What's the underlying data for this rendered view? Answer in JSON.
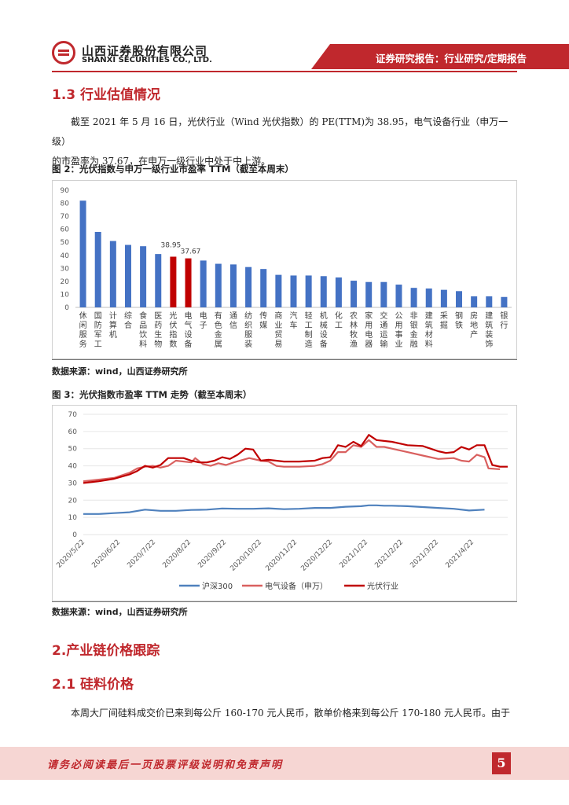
{
  "header": {
    "company_cn": "山西证券股份有限公司",
    "company_en": "SHANXI SECURITIES CO., LTD.",
    "report_type": "证券研究报告：行业研究/定期报告",
    "brand_color": "#c0282d"
  },
  "section_1_3": {
    "title": "1.3 行业估值情况",
    "para_line1": "截至 2021 年 5 月 16 日，光伏行业（Wind 光伏指数）的 PE(TTM)为 38.95，电气设备行业（申万一级）",
    "para_line2": "的市盈率为 37.67，在申万一级行业中处于中上游。"
  },
  "figure2": {
    "title": "图 2：光伏指数与申万一级行业市盈率 TTM（截至本周末）",
    "source": "数据来源：wind，山西证券研究所"
  },
  "figure3": {
    "title": "图 3：光伏指数市盈率 TTM 走势（截至本周末）",
    "source": "数据来源：wind，山西证券研究所"
  },
  "section_2": {
    "title": "2.产业链价格跟踪"
  },
  "section_2_1": {
    "title": "2.1 硅料价格",
    "para": "本周大厂间硅料成交价已来到每公斤 160-170 元人民币，散单价格来到每公斤 170-180 元人民币。由于"
  },
  "footer": {
    "disclaimer": "请务必阅读最后一页股票评级说明和免责声明",
    "page": "5"
  },
  "chart_data": [
    {
      "type": "bar",
      "categories": [
        "休闲服务",
        "国防军工",
        "计算机",
        "综合",
        "食品饮料",
        "医药生物",
        "光伏指数",
        "电气设备",
        "电子",
        "有色金属",
        "通信",
        "纺织服装",
        "传媒",
        "商业贸易",
        "汽车",
        "轻工制造",
        "机械设备",
        "化工",
        "农林牧渔",
        "家用电器",
        "交通运输",
        "公用事业",
        "非银金融",
        "建筑材料",
        "采掘",
        "钢铁",
        "房地产",
        "建筑装饰",
        "银行"
      ],
      "values": [
        82,
        58,
        51,
        48,
        47,
        41,
        38.95,
        37.67,
        36,
        33.5,
        33,
        31,
        29.5,
        25,
        24.5,
        24.5,
        24,
        23,
        20.5,
        19.5,
        19.5,
        17.5,
        15,
        14.5,
        13.5,
        12.5,
        8.5,
        8.5,
        8
      ],
      "data_labels": {
        "光伏指数": "38.95",
        "电气设备": "37.67"
      },
      "ylim": [
        0,
        90
      ],
      "yticks": [
        "0",
        "10",
        "20",
        "30",
        "40",
        "50",
        "60",
        "70",
        "80",
        "90"
      ],
      "colors": {
        "default": "#4472c4",
        "highlight": "#c00000"
      },
      "highlight": [
        "光伏指数",
        "电气设备"
      ]
    },
    {
      "type": "line",
      "x_ticks": [
        "2020/5/22",
        "2020/6/22",
        "2020/7/22",
        "2020/8/22",
        "2020/9/22",
        "2020/10/22",
        "2020/11/22",
        "2020/12/22",
        "2021/1/22",
        "2021/2/22",
        "2021/3/22",
        "2021/4/22"
      ],
      "x_start": "2020/5/22",
      "x_end": "2021/5/16",
      "ylim": [
        0,
        70
      ],
      "yticks": [
        "0",
        "10",
        "20",
        "30",
        "40",
        "50",
        "60",
        "70"
      ],
      "legend_position": "bottom",
      "series": [
        {
          "name": "沪深300",
          "color": "#4f81bd",
          "values": [
            [
              0,
              12
            ],
            [
              4,
              12
            ],
            [
              8,
              12.5
            ],
            [
              12,
              13
            ],
            [
              16,
              14.5
            ],
            [
              20,
              13.8
            ],
            [
              24,
              13.8
            ],
            [
              28,
              14.3
            ],
            [
              32,
              14.5
            ],
            [
              36,
              15.2
            ],
            [
              40,
              15
            ],
            [
              44,
              15
            ],
            [
              48,
              15.3
            ],
            [
              52,
              14.8
            ],
            [
              56,
              15
            ],
            [
              60,
              15.5
            ],
            [
              64,
              15.5
            ],
            [
              68,
              16.2
            ],
            [
              72,
              16.5
            ],
            [
              74,
              17
            ],
            [
              76,
              17
            ],
            [
              78,
              16.8
            ],
            [
              80,
              16.8
            ],
            [
              84,
              16.5
            ],
            [
              88,
              16
            ],
            [
              92,
              15.5
            ],
            [
              96,
              15
            ],
            [
              100,
              14
            ],
            [
              104,
              14.5
            ]
          ]
        },
        {
          "name": "电气设备（申万）",
          "color": "#d9605f",
          "values": [
            [
              0,
              31
            ],
            [
              4,
              32
            ],
            [
              8,
              33
            ],
            [
              12,
              36
            ],
            [
              14,
              38.5
            ],
            [
              16,
              39.5
            ],
            [
              18,
              40
            ],
            [
              20,
              39
            ],
            [
              22,
              40
            ],
            [
              24,
              43
            ],
            [
              28,
              42
            ],
            [
              29,
              44.5
            ],
            [
              31,
              41
            ],
            [
              33,
              40
            ],
            [
              35,
              41.5
            ],
            [
              37,
              40.5
            ],
            [
              39,
              42
            ],
            [
              43,
              44.5
            ],
            [
              46,
              43
            ],
            [
              48,
              42.5
            ],
            [
              50,
              40
            ],
            [
              52,
              39.5
            ],
            [
              56,
              39.5
            ],
            [
              60,
              40
            ],
            [
              62,
              41
            ],
            [
              64,
              43
            ],
            [
              66,
              48
            ],
            [
              68,
              48
            ],
            [
              70,
              52
            ],
            [
              72,
              51
            ],
            [
              74,
              55
            ],
            [
              76,
              51
            ],
            [
              78,
              51
            ],
            [
              80,
              50
            ],
            [
              84,
              48
            ],
            [
              88,
              46
            ],
            [
              92,
              44
            ],
            [
              96,
              44.5
            ],
            [
              98,
              43
            ],
            [
              100,
              42.5
            ],
            [
              102,
              46.5
            ],
            [
              104,
              45
            ],
            [
              105,
              38.5
            ],
            [
              108,
              38
            ]
          ]
        },
        {
          "name": "光伏行业",
          "color": "#c00000",
          "values": [
            [
              0,
              30
            ],
            [
              4,
              31
            ],
            [
              8,
              32.5
            ],
            [
              12,
              35
            ],
            [
              14,
              37
            ],
            [
              16,
              40
            ],
            [
              18,
              39
            ],
            [
              20,
              40.5
            ],
            [
              22,
              44.5
            ],
            [
              26,
              44.5
            ],
            [
              28,
              43
            ],
            [
              30,
              42
            ],
            [
              32,
              42
            ],
            [
              34,
              43
            ],
            [
              36,
              45
            ],
            [
              38,
              44
            ],
            [
              40,
              46.5
            ],
            [
              42,
              50
            ],
            [
              44,
              49.5
            ],
            [
              46,
              43
            ],
            [
              48,
              43.5
            ],
            [
              52,
              42.5
            ],
            [
              56,
              42.5
            ],
            [
              60,
              43
            ],
            [
              62,
              44.5
            ],
            [
              64,
              45
            ],
            [
              66,
              52
            ],
            [
              68,
              51
            ],
            [
              70,
              54
            ],
            [
              72,
              51.5
            ],
            [
              74,
              58
            ],
            [
              76,
              55
            ],
            [
              80,
              54
            ],
            [
              84,
              52
            ],
            [
              88,
              51.5
            ],
            [
              90,
              50
            ],
            [
              92,
              48.5
            ],
            [
              94,
              47.5
            ],
            [
              96,
              48
            ],
            [
              98,
              51
            ],
            [
              100,
              49.5
            ],
            [
              102,
              52
            ],
            [
              104,
              52
            ],
            [
              106,
              40.5
            ],
            [
              108,
              39.5
            ],
            [
              110,
              39.5
            ]
          ]
        }
      ]
    }
  ]
}
